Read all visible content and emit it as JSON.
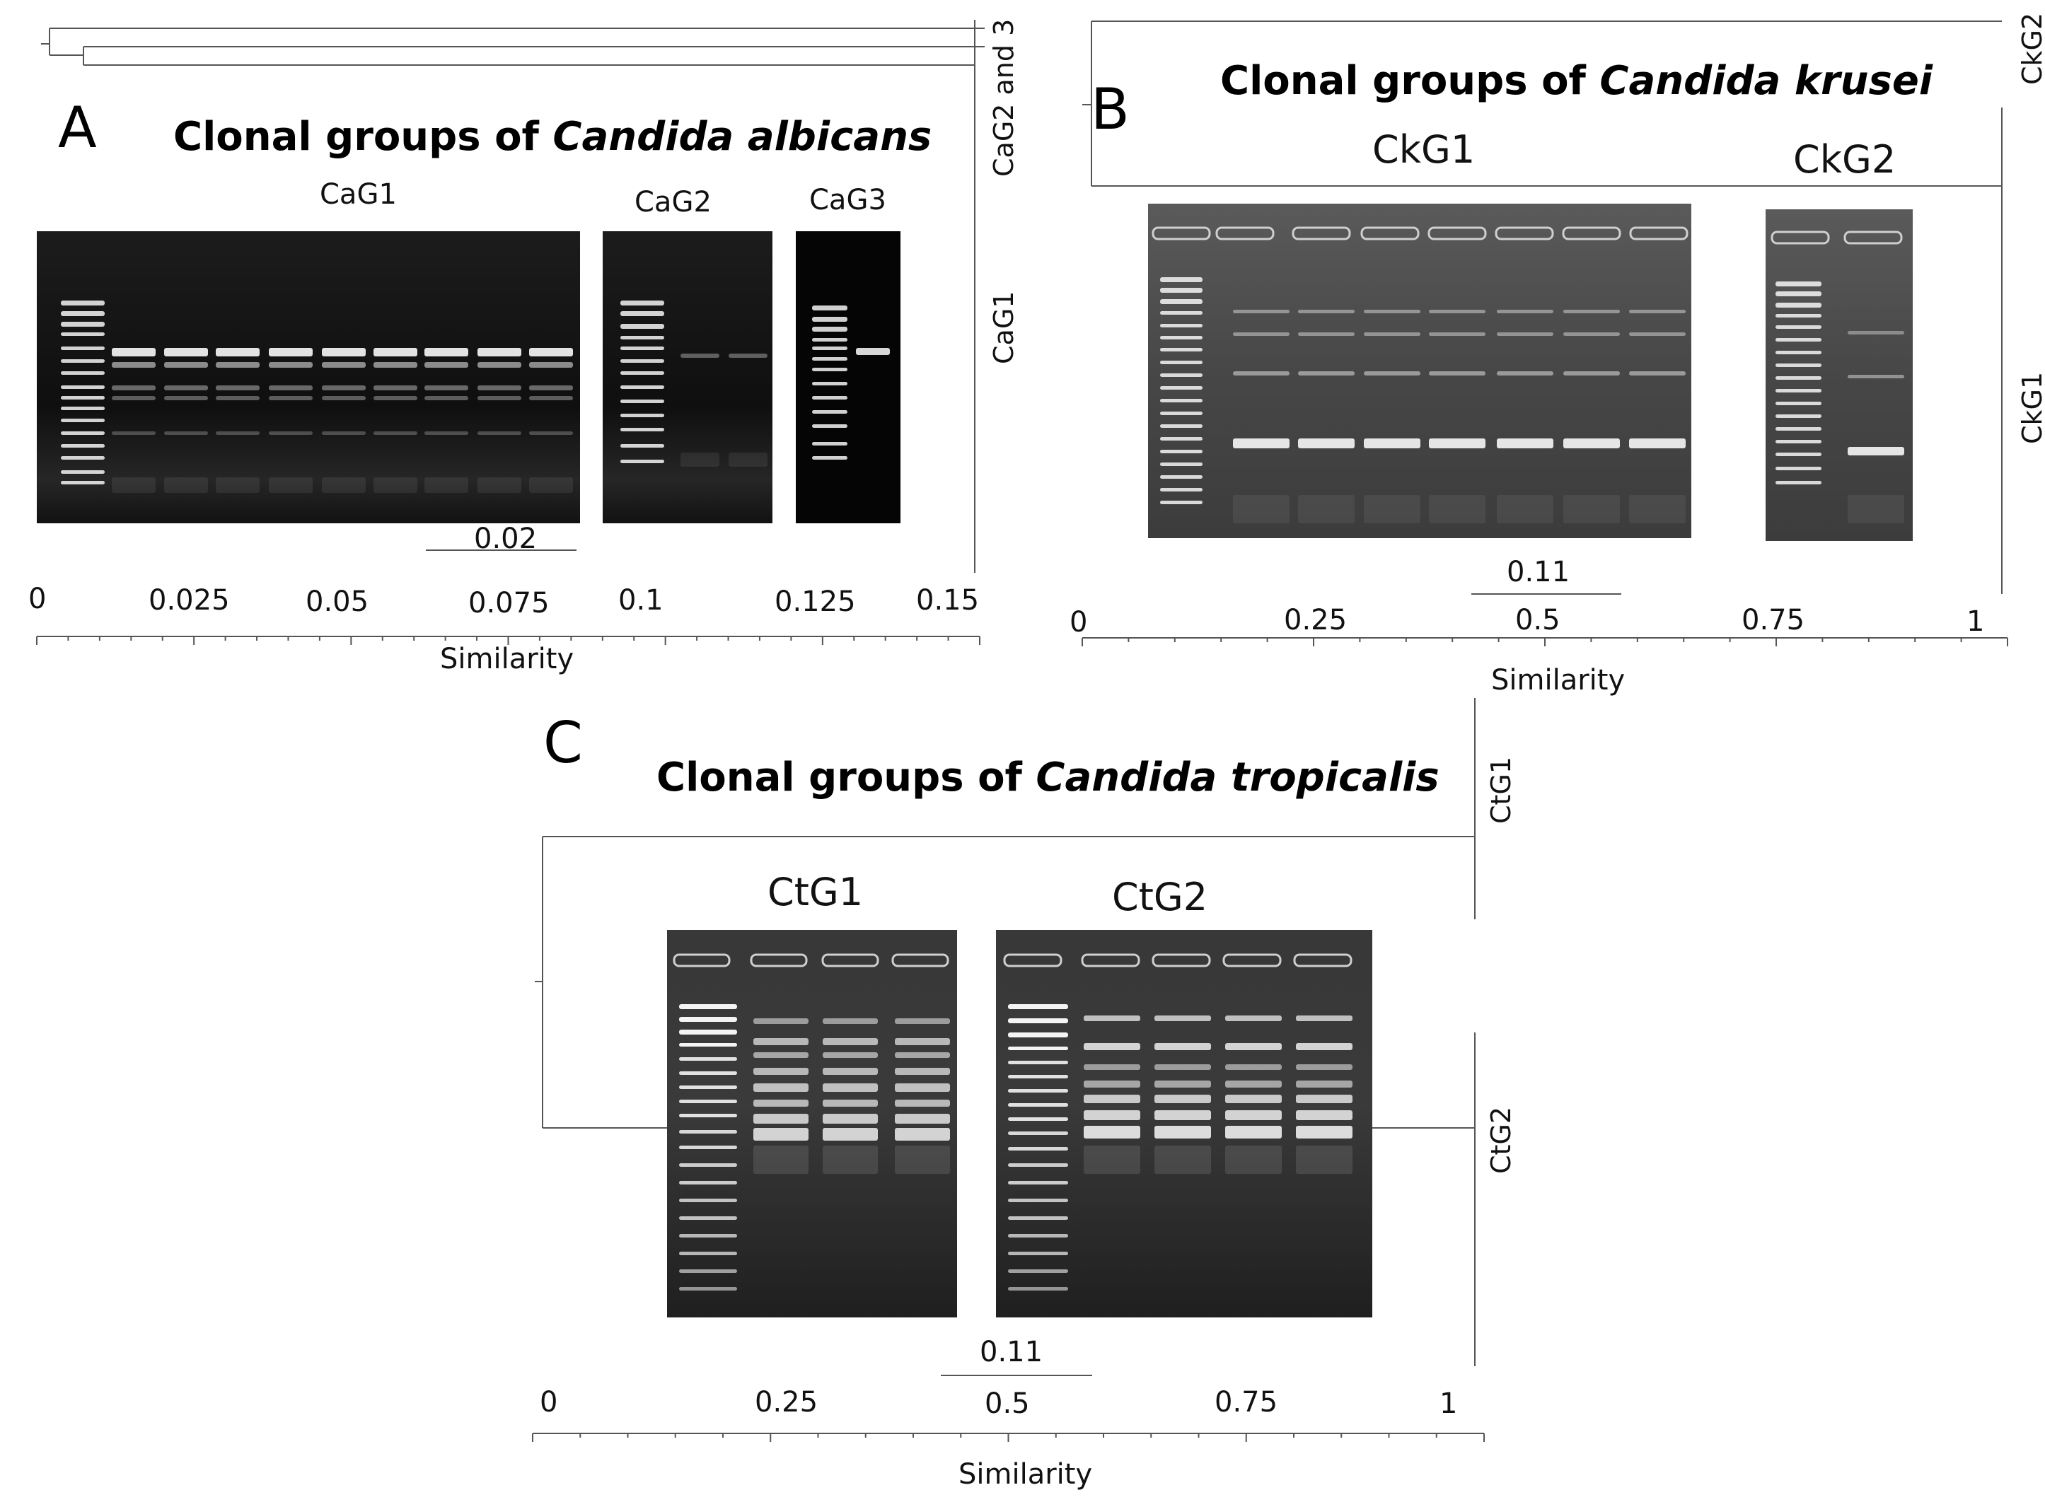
{
  "panel_a": {
    "letter": "A",
    "title_plain": "Clonal groups of ",
    "title_italic": "Candida albicans",
    "groups": [
      "CaG1",
      "CaG2",
      "CaG3"
    ],
    "right_labels": [
      "CaG2 and 3",
      "CaG1"
    ],
    "scale_value": "0.02",
    "ticks": [
      "0",
      "0.025",
      "0.05",
      "0.075",
      "0.1",
      "0.125",
      "0.15"
    ],
    "axis_label": "Similarity"
  },
  "panel_b": {
    "letter": "B",
    "title_plain": "Clonal groups of ",
    "title_italic": "Candida krusei",
    "groups": [
      "CkG1",
      "CkG2"
    ],
    "right_labels": [
      "CkG2",
      "CkG1"
    ],
    "scale_value": "0.11",
    "ticks": [
      "0",
      "0.25",
      "0.5",
      "0.75",
      "1"
    ],
    "axis_label": "Similarity"
  },
  "panel_c": {
    "letter": "C",
    "title_plain": "Clonal groups of ",
    "title_italic": "Candida tropicalis",
    "groups": [
      "CtG1",
      "CtG2"
    ],
    "right_labels": [
      "CtG1",
      "CtG2"
    ],
    "scale_value": "0.11",
    "ticks": [
      "0",
      "0.25",
      "0.5",
      "0.75",
      "1"
    ],
    "axis_label": "Similarity"
  },
  "colors": {
    "gel_dark": "#141414",
    "gel_grey": "#4a4a4a",
    "band": "#f2f2f2"
  }
}
